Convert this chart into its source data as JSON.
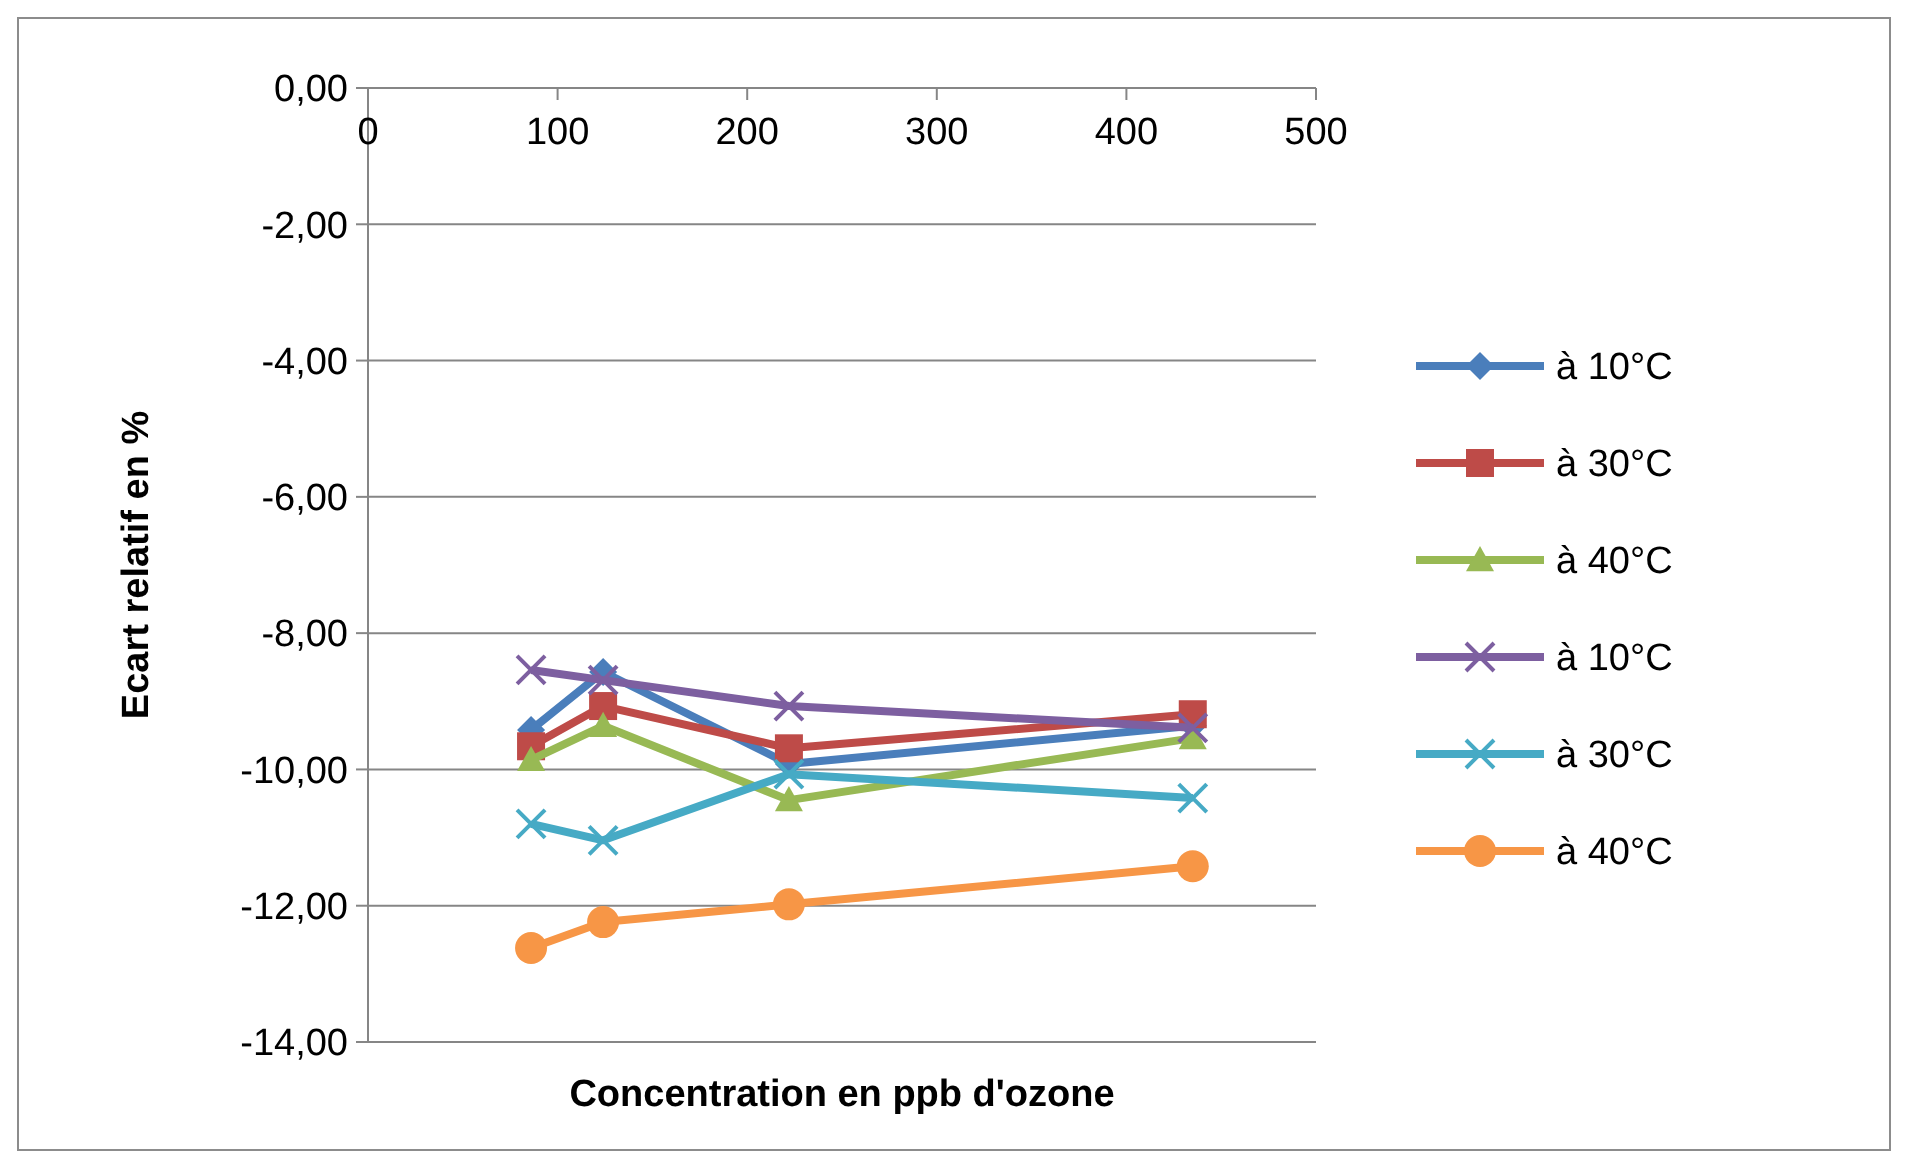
{
  "chart_data": {
    "type": "line",
    "xlabel": "Concentration en ppb d'ozone",
    "ylabel": "Ecart relatif en %",
    "xlim": [
      0,
      500
    ],
    "xticks": [
      0,
      100,
      200,
      300,
      400,
      500
    ],
    "ylim": [
      -14,
      0
    ],
    "yticks": [
      {
        "value": 0,
        "label": "0,00"
      },
      {
        "value": -2,
        "label": "-2,00"
      },
      {
        "value": -4,
        "label": "-4,00"
      },
      {
        "value": -6,
        "label": "-6,00"
      },
      {
        "value": -8,
        "label": "-8,00"
      },
      {
        "value": -10,
        "label": "-10,00"
      },
      {
        "value": -12,
        "label": "-12,00"
      },
      {
        "value": -14,
        "label": "-14,00"
      }
    ],
    "grid": "y",
    "legend": "right",
    "x": [
      86,
      124,
      222,
      435
    ],
    "series": [
      {
        "name": "à 10°C",
        "color": "#4a7ebb",
        "marker": "diamond",
        "values": [
          -9.42,
          -8.57,
          -9.92,
          -9.36
        ]
      },
      {
        "name": "à 30°C",
        "color": "#be4b48",
        "marker": "square",
        "values": [
          -9.66,
          -9.07,
          -9.69,
          -9.19
        ]
      },
      {
        "name": "à 40°C",
        "color": "#98b954",
        "marker": "triangle",
        "values": [
          -9.86,
          -9.36,
          -10.45,
          -9.54
        ]
      },
      {
        "name": "à 10°C",
        "color": "#7d5fa0",
        "marker": "cross",
        "values": [
          -8.54,
          -8.69,
          -9.07,
          -9.39
        ]
      },
      {
        "name": "à 30°C",
        "color": "#46aac5",
        "marker": "cross",
        "values": [
          -10.8,
          -11.04,
          -10.07,
          -10.42
        ]
      },
      {
        "name": "à 40°C",
        "color": "#f79646",
        "marker": "circle",
        "values": [
          -12.62,
          -12.24,
          -11.98,
          -11.42
        ]
      }
    ]
  }
}
